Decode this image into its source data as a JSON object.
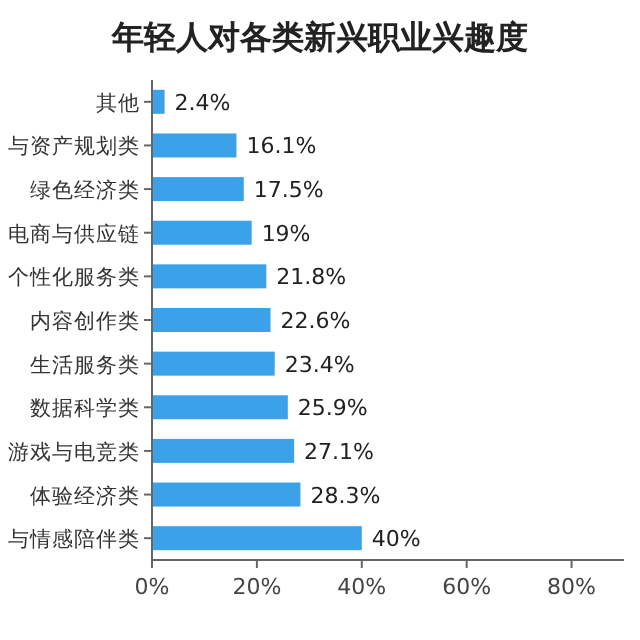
{
  "chart_data": {
    "type": "bar",
    "orientation": "horizontal",
    "title": "年轻人对各类新兴职业兴趣度",
    "categories": [
      "其他",
      "与资产规划类",
      "绿色经济类",
      "电商与供应链",
      "个性化服务类",
      "内容创作类",
      "生活服务类",
      "数据科学类",
      "游戏与电竞类",
      "体验经济类",
      "与情感陪伴类"
    ],
    "values": [
      2.4,
      16.1,
      17.5,
      19,
      21.8,
      22.6,
      23.4,
      25.9,
      27.1,
      28.3,
      40
    ],
    "value_labels": [
      "2.4%",
      "16.1%",
      "17.5%",
      "19%",
      "21.8%",
      "22.6%",
      "23.4%",
      "25.9%",
      "27.1%",
      "28.3%",
      "40%"
    ],
    "color": "#3ba2ea",
    "xlim": [
      0,
      90
    ],
    "xticks": [
      {
        "value": 0,
        "label": "0%"
      },
      {
        "value": 20,
        "label": "20%"
      },
      {
        "value": 40,
        "label": "40%"
      },
      {
        "value": 60,
        "label": "60%"
      },
      {
        "value": 80,
        "label": "80%"
      }
    ],
    "grid": false
  }
}
